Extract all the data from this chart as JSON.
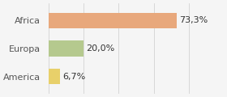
{
  "categories": [
    "America",
    "Europa",
    "Africa"
  ],
  "values": [
    6.7,
    20.0,
    73.3
  ],
  "labels": [
    "6,7%",
    "20,0%",
    "73,3%"
  ],
  "bar_colors": [
    "#e8d06a",
    "#b5c98e",
    "#e8a87c"
  ],
  "background_color": "#f5f5f5",
  "xlim": [
    0,
    100
  ],
  "bar_height": 0.55,
  "label_fontsize": 8.0,
  "tick_fontsize": 8.0
}
